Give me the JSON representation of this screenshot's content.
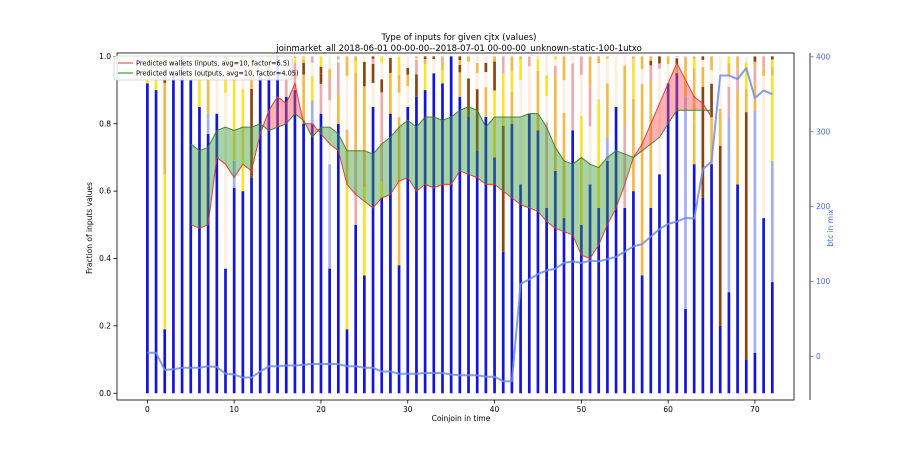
{
  "chart_data": {
    "type": "bar",
    "title": "Type of inputs for given cjtx (values)",
    "subtitle": "joinmarket_all 2018-06-01 00-00-00--2018-07-01 00-00-00_unknown-static-100-1utxo",
    "xlabel": "Coinjoin in time",
    "ylabel": "Fraction of inputs values",
    "y2label": "btc in mix",
    "xlim": [
      -3.5,
      74.5
    ],
    "ylim": [
      -0.02,
      1.01
    ],
    "y2lim": [
      -58,
      405
    ],
    "xticks": [
      0,
      10,
      20,
      30,
      40,
      50,
      60,
      70
    ],
    "yticks": [
      0.0,
      0.2,
      0.4,
      0.6,
      0.8,
      1.0
    ],
    "y2ticks": [
      0,
      100,
      200,
      300,
      400
    ],
    "legend_position": "top-left",
    "colors": {
      "fresh_inputs": "#1515d6",
      "remixed_inputs": "#a5aef0",
      "yellow_inputs": "#ffe033",
      "orange_inputs": "#f5b94a",
      "pale_inputs": "#fdeee0",
      "pink_inputs": "#eeaaaa",
      "brown_inputs": "#8b4513",
      "btc_line": "#6f8de6",
      "inputs_band": "#ff5555",
      "outputs_band": "#3e9b3e"
    },
    "x": [
      0,
      1,
      2,
      3,
      4,
      5,
      6,
      7,
      8,
      9,
      10,
      11,
      12,
      13,
      14,
      15,
      16,
      17,
      18,
      19,
      20,
      21,
      22,
      23,
      24,
      25,
      26,
      27,
      28,
      29,
      30,
      31,
      32,
      33,
      34,
      35,
      36,
      37,
      38,
      39,
      40,
      41,
      42,
      43,
      44,
      45,
      46,
      47,
      48,
      49,
      50,
      51,
      52,
      53,
      54,
      55,
      56,
      57,
      58,
      59,
      60,
      61,
      62,
      63,
      64,
      65,
      66,
      67,
      68,
      69,
      70,
      71,
      72
    ],
    "stacks": {
      "fresh": [
        0.92,
        0.9,
        0.19,
        0.95,
        1.0,
        0.93,
        0.85,
        0.77,
        0.83,
        0.37,
        0.61,
        0.6,
        0.64,
        0.95,
        0.93,
        1.0,
        0.88,
        0.9,
        0.8,
        0.8,
        0.83,
        0.37,
        0.8,
        0.19,
        0.5,
        0.35,
        0.85,
        0.58,
        0.83,
        0.38,
        0.85,
        0.88,
        0.9,
        0.95,
        0.92,
        1.0,
        0.88,
        0.82,
        0.72,
        0.82,
        0.7,
        0.42,
        0.8,
        0.62,
        0.83,
        0.78,
        0.55,
        0.66,
        0.52,
        0.78,
        0.5,
        0.62,
        0.55,
        0.69,
        0.85,
        0.55,
        0.6,
        0.35,
        0.55,
        0.65,
        0.92,
        0.95,
        0.25,
        0.68,
        0.58,
        0.68,
        0.2,
        0.3,
        0.62,
        0.1,
        0.12,
        0.52,
        0.33
      ],
      "remix": [
        0.0,
        0.0,
        0.0,
        0.0,
        0.0,
        0.0,
        0.0,
        0.06,
        0.0,
        0.0,
        0.08,
        0.0,
        0.0,
        0.0,
        0.0,
        0.0,
        0.0,
        0.0,
        0.0,
        0.07,
        0.0,
        0.31,
        0.0,
        0.0,
        0.0,
        0.0,
        0.0,
        0.0,
        0.0,
        0.0,
        0.0,
        0.0,
        0.0,
        0.0,
        0.0,
        0.0,
        0.0,
        0.0,
        0.0,
        0.0,
        0.0,
        0.0,
        0.0,
        0.0,
        0.0,
        0.0,
        0.0,
        0.0,
        0.0,
        0.0,
        0.0,
        0.0,
        0.0,
        0.07,
        0.0,
        0.0,
        0.0,
        0.0,
        0.0,
        0.0,
        0.0,
        0.0,
        0.63,
        0.0,
        0.0,
        0.0,
        0.0,
        0.52,
        0.0,
        0.0,
        0.72,
        0.0,
        0.36
      ],
      "yellow": [
        0.05,
        0.03,
        0.46,
        0.0,
        0.0,
        0.0,
        0.1,
        0.0,
        0.0,
        0.0,
        0.1,
        0.0,
        0.0,
        0.0,
        0.0,
        0.0,
        0.0,
        0.0,
        0.0,
        0.0,
        0.0,
        0.0,
        0.0,
        0.0,
        0.0,
        0.0,
        0.0,
        0.05,
        0.0,
        0.0,
        0.0,
        0.0,
        0.0,
        0.0,
        0.0,
        0.0,
        0.0,
        0.0,
        0.0,
        0.0,
        0.0,
        0.0,
        0.0,
        0.0,
        0.0,
        0.0,
        0.0,
        0.0,
        0.0,
        0.0,
        0.0,
        0.0,
        0.0,
        0.0,
        0.0,
        0.0,
        0.0,
        0.0,
        0.0,
        0.0,
        0.0,
        0.0,
        0.0,
        0.0,
        0.0,
        0.0,
        0.0,
        0.0,
        0.0,
        0.0,
        0.0,
        0.0,
        0.0
      ]
    },
    "inputs_wallets": [
      null,
      null,
      null,
      null,
      null,
      0.5,
      0.49,
      0.5,
      0.7,
      0.68,
      0.64,
      0.68,
      0.66,
      0.77,
      0.84,
      0.88,
      0.86,
      0.92,
      0.8,
      0.8,
      0.77,
      0.74,
      0.72,
      0.62,
      0.59,
      0.57,
      0.55,
      0.58,
      0.59,
      0.63,
      0.64,
      0.6,
      0.62,
      0.61,
      0.62,
      0.62,
      0.66,
      0.65,
      0.64,
      0.62,
      0.62,
      0.6,
      0.58,
      0.56,
      0.55,
      0.54,
      0.51,
      0.49,
      0.48,
      0.47,
      0.41,
      0.4,
      0.44,
      0.5,
      0.55,
      0.62,
      0.7,
      0.74,
      0.8,
      0.86,
      0.92,
      0.98,
      0.93,
      0.88,
      0.86,
      0.82,
      null,
      null,
      null,
      null,
      null,
      null,
      null
    ],
    "outputs_wallets": [
      null,
      null,
      null,
      null,
      null,
      0.74,
      0.72,
      0.73,
      0.78,
      0.79,
      0.78,
      0.79,
      0.79,
      0.8,
      0.78,
      0.79,
      0.8,
      0.83,
      0.81,
      0.76,
      0.79,
      0.79,
      0.77,
      0.72,
      0.72,
      0.72,
      0.71,
      0.74,
      0.76,
      0.79,
      0.81,
      0.79,
      0.82,
      0.82,
      0.81,
      0.82,
      0.84,
      0.85,
      0.84,
      0.79,
      0.82,
      0.82,
      0.82,
      0.82,
      0.83,
      0.83,
      0.79,
      0.73,
      0.69,
      0.68,
      0.7,
      0.68,
      0.67,
      0.7,
      0.72,
      0.71,
      0.7,
      0.72,
      0.74,
      0.76,
      0.8,
      0.84,
      0.84,
      0.84,
      0.84,
      0.84,
      null,
      null,
      null,
      null,
      null,
      null,
      null
    ],
    "btc_in_mix": [
      5,
      5,
      -18,
      -17,
      -15,
      -15,
      -15,
      -13,
      -14,
      -23,
      -24,
      -28,
      -28,
      -20,
      -13,
      -13,
      -12,
      -12,
      -11,
      -10,
      -10,
      -10,
      -10,
      -13,
      -13,
      -15,
      -15,
      -20,
      -20,
      -23,
      -23,
      -23,
      -22,
      -22,
      -22,
      -24,
      -25,
      -25,
      -25,
      -27,
      -27,
      -33,
      -33,
      97,
      103,
      110,
      115,
      117,
      125,
      127,
      125,
      128,
      127,
      130,
      133,
      140,
      147,
      150,
      160,
      170,
      177,
      180,
      185,
      184,
      250,
      260,
      375,
      375,
      370,
      385,
      345,
      355,
      350
    ],
    "legend": [
      {
        "label": "Predicted wallets (inputs, avg=10, factor=6.5)",
        "color": "#ff5555"
      },
      {
        "label": "Predicted wallets (outputs, avg=10, factor=4.05)",
        "color": "#3e9b3e"
      }
    ]
  }
}
